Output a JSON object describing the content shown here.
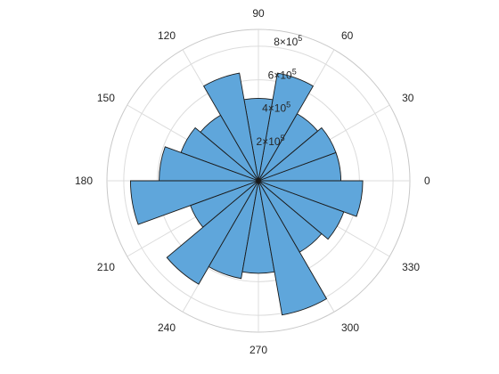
{
  "chart_data": {
    "type": "polar-histogram",
    "theta_unit": "degrees",
    "bin_width_deg": 20,
    "bins": [
      {
        "start": 0,
        "end": 20,
        "value": 490000
      },
      {
        "start": 20,
        "end": 40,
        "value": 490000
      },
      {
        "start": 40,
        "end": 60,
        "value": 460000
      },
      {
        "start": 60,
        "end": 80,
        "value": 650000
      },
      {
        "start": 80,
        "end": 100,
        "value": 490000
      },
      {
        "start": 100,
        "end": 120,
        "value": 650000
      },
      {
        "start": 120,
        "end": 140,
        "value": 450000
      },
      {
        "start": 140,
        "end": 160,
        "value": 490000
      },
      {
        "start": 160,
        "end": 180,
        "value": 590000
      },
      {
        "start": 180,
        "end": 200,
        "value": 760000
      },
      {
        "start": 200,
        "end": 220,
        "value": 430000
      },
      {
        "start": 220,
        "end": 240,
        "value": 710000
      },
      {
        "start": 240,
        "end": 260,
        "value": 590000
      },
      {
        "start": 260,
        "end": 280,
        "value": 550000
      },
      {
        "start": 280,
        "end": 300,
        "value": 810000
      },
      {
        "start": 300,
        "end": 320,
        "value": 490000
      },
      {
        "start": 320,
        "end": 340,
        "value": 540000
      },
      {
        "start": 340,
        "end": 360,
        "value": 620000
      }
    ],
    "rlim": [
      0,
      900000
    ],
    "r_ticks": [
      {
        "value": 200000,
        "mantissa": "2",
        "exponent": "5"
      },
      {
        "value": 400000,
        "mantissa": "4",
        "exponent": "5"
      },
      {
        "value": 600000,
        "mantissa": "6",
        "exponent": "5"
      },
      {
        "value": 800000,
        "mantissa": "8",
        "exponent": "5"
      }
    ],
    "r_tick_label_angle_deg": 80,
    "theta_ticks": [
      0,
      30,
      60,
      90,
      120,
      150,
      180,
      210,
      240,
      270,
      300,
      330
    ],
    "theta_tick_labels": [
      "0",
      "30",
      "60",
      "90",
      "120",
      "150",
      "180",
      "210",
      "240",
      "270",
      "300",
      "330"
    ],
    "grid": true,
    "colors": {
      "bar_fill": "#5fa6db",
      "bar_edge": "#1a1a1a",
      "grid": "#dcdcdc",
      "outer_ring": "#c8c8c8",
      "text": "#262626"
    }
  }
}
